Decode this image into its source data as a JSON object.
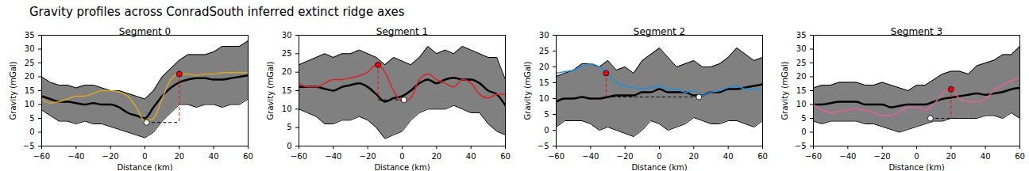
{
  "title": "Gravity profiles across ConradSouth inferred extinct ridge axes",
  "chart_data": [
    {
      "type": "line",
      "title": "Segment 0",
      "x_label": "Distance (km)",
      "y_label": "Gravity (mGal)",
      "xlim": [
        -60,
        60
      ],
      "xticks": [
        -60,
        -40,
        -20,
        0,
        20,
        40,
        60
      ],
      "ylim": [
        -5,
        35
      ],
      "yticks": [
        -5,
        0,
        5,
        10,
        15,
        20,
        25,
        30,
        35
      ],
      "x": [
        -60,
        -55,
        -50,
        -45,
        -40,
        -35,
        -30,
        -25,
        -20,
        -15,
        -10,
        -5,
        0,
        5,
        10,
        15,
        20,
        25,
        30,
        35,
        40,
        45,
        50,
        55,
        60
      ],
      "band": {
        "color": "#808080",
        "lower": [
          8,
          6,
          4,
          4,
          3,
          4,
          3,
          3,
          2,
          1,
          0,
          -1,
          -2,
          0,
          4,
          7,
          10,
          10,
          9,
          10,
          10,
          9,
          10,
          10,
          12
        ],
        "upper": [
          20,
          18,
          17,
          17,
          16,
          17,
          17,
          16,
          15,
          15,
          14,
          13,
          12,
          15,
          20,
          23,
          26,
          28,
          28,
          28,
          29,
          31,
          31,
          31,
          33
        ]
      },
      "series": [
        {
          "color": "#000000",
          "values": [
            13,
            12,
            11,
            11,
            10.5,
            10,
            10.5,
            10,
            10,
            9,
            7,
            6,
            5,
            9,
            13,
            16,
            18,
            19,
            19.5,
            19.5,
            19,
            19,
            19.5,
            20,
            20.5
          ]
        },
        {
          "color": "#daa520",
          "values": [
            12,
            10.5,
            11,
            12,
            13,
            13,
            14,
            15,
            15,
            14.5,
            13,
            9,
            4,
            5,
            12,
            19,
            21,
            21,
            20.5,
            21,
            21,
            21.5,
            21.5,
            21.5,
            21.5
          ]
        }
      ],
      "markers": [
        {
          "x": 20,
          "y": 21,
          "color": "#ff0000"
        },
        {
          "x": 1,
          "y": 3.5,
          "color": "#ffffff"
        }
      ],
      "line_style": "dashed"
    },
    {
      "type": "line",
      "title": "Segment 1",
      "x_label": "Distance (km)",
      "y_label": "Gravity (mGal)",
      "xlim": [
        -60,
        60
      ],
      "xticks": [
        -60,
        -40,
        -20,
        0,
        20,
        40,
        60
      ],
      "ylim": [
        0,
        30
      ],
      "yticks": [
        0,
        5,
        10,
        15,
        20,
        25,
        30
      ],
      "x": [
        -60,
        -55,
        -50,
        -45,
        -40,
        -35,
        -30,
        -25,
        -20,
        -15,
        -10,
        -5,
        0,
        5,
        10,
        15,
        20,
        25,
        30,
        35,
        40,
        45,
        50,
        55,
        60
      ],
      "band": {
        "color": "#808080",
        "lower": [
          10,
          9,
          8,
          6,
          6,
          7,
          7,
          8,
          7,
          5,
          2,
          3,
          4,
          7,
          9,
          10,
          10,
          10,
          11,
          10,
          9,
          9,
          6,
          4,
          3
        ],
        "upper": [
          22,
          23,
          24,
          25,
          24,
          25,
          25,
          26,
          25,
          24,
          22,
          24,
          23,
          22,
          24,
          27,
          25,
          26,
          25,
          27,
          26,
          25,
          24,
          24,
          18
        ]
      },
      "series": [
        {
          "color": "#000000",
          "values": [
            16,
            16,
            16,
            15.5,
            15,
            16,
            16.5,
            17,
            16,
            14,
            12,
            13,
            13.5,
            15,
            17,
            18,
            17,
            18,
            18.5,
            18,
            18,
            17,
            15,
            14,
            11
          ]
        },
        {
          "color": "#dd2222",
          "values": [
            17,
            16,
            16,
            17,
            18,
            18,
            18.5,
            19,
            20,
            22,
            20,
            15,
            12,
            13,
            18,
            19.5,
            18,
            17,
            16,
            18,
            17,
            14,
            13,
            14,
            14
          ]
        }
      ],
      "markers": [
        {
          "x": -14,
          "y": 22,
          "color": "#ff0000"
        },
        {
          "x": 1,
          "y": 12.5,
          "color": "#ffffff"
        }
      ],
      "line_style": "dashed"
    },
    {
      "type": "line",
      "title": "Segment 2",
      "x_label": "Distance (km)",
      "y_label": "Gravity (mGal)",
      "xlim": [
        -60,
        60
      ],
      "xticks": [
        -60,
        -40,
        -20,
        0,
        20,
        40,
        60
      ],
      "ylim": [
        -5,
        30
      ],
      "yticks": [
        -5,
        0,
        5,
        10,
        15,
        20,
        25,
        30
      ],
      "x": [
        -60,
        -55,
        -50,
        -45,
        -40,
        -35,
        -30,
        -25,
        -20,
        -15,
        -10,
        -5,
        0,
        5,
        10,
        15,
        20,
        25,
        30,
        35,
        40,
        45,
        50,
        55,
        60
      ],
      "band": {
        "color": "#808080",
        "lower": [
          1,
          3,
          3,
          3,
          2,
          0,
          1,
          0,
          -1,
          -2,
          0,
          3,
          2,
          0,
          1,
          2,
          4,
          3,
          2,
          2,
          3,
          3,
          2,
          1,
          3
        ],
        "upper": [
          17,
          18,
          19,
          21,
          21,
          20,
          22,
          19,
          20,
          18,
          22,
          24,
          26,
          23,
          20,
          21,
          22,
          20,
          20,
          21,
          23,
          26,
          24,
          22,
          23
        ]
      },
      "series": [
        {
          "color": "#000000",
          "values": [
            9,
            10,
            10,
            10.5,
            10,
            10,
            10.5,
            11,
            11,
            11,
            12,
            12,
            13,
            12,
            12,
            12,
            11,
            11,
            12,
            12,
            13,
            13,
            13.5,
            14,
            14.5
          ]
        },
        {
          "color": "#1f8fe0",
          "values": [
            18,
            18.5,
            19,
            20,
            21,
            20,
            18,
            15,
            14,
            13.5,
            13,
            13.5,
            14,
            13,
            13,
            12,
            12.5,
            11,
            12,
            12.5,
            13.5,
            14,
            13,
            13,
            12.5
          ]
        }
      ],
      "markers": [
        {
          "x": -31,
          "y": 18,
          "color": "#ff0000"
        },
        {
          "x": 23,
          "y": 10.5,
          "color": "#ffffff"
        }
      ],
      "line_style": "dashed"
    },
    {
      "type": "line",
      "title": "Segment 3",
      "x_label": "Distance (km)",
      "y_label": "Gravity (mGal)",
      "xlim": [
        -60,
        60
      ],
      "xticks": [
        -60,
        -40,
        -20,
        0,
        20,
        40,
        60
      ],
      "ylim": [
        -5,
        35
      ],
      "yticks": [
        -5,
        0,
        5,
        10,
        15,
        20,
        25,
        30,
        35
      ],
      "x": [
        -60,
        -55,
        -50,
        -45,
        -40,
        -35,
        -30,
        -25,
        -20,
        -15,
        -10,
        -5,
        0,
        5,
        10,
        15,
        20,
        25,
        30,
        35,
        40,
        45,
        50,
        55,
        60
      ],
      "band": {
        "color": "#808080",
        "lower": [
          4,
          3,
          4,
          4,
          4,
          4,
          3,
          3,
          2,
          1,
          0,
          1,
          2,
          3,
          4,
          4,
          5,
          5,
          5,
          5,
          6,
          6,
          5,
          7,
          5
        ],
        "upper": [
          16,
          17,
          17,
          18,
          18,
          18,
          17,
          17,
          18,
          17,
          16,
          15,
          17,
          17,
          19,
          21,
          22,
          22,
          21,
          24,
          25,
          26,
          28,
          28,
          31
        ]
      },
      "series": [
        {
          "color": "#000000",
          "values": [
            10,
            10,
            10.5,
            11,
            11,
            11,
            10,
            10,
            10,
            9,
            9.5,
            10,
            10,
            10,
            11,
            12,
            12.5,
            13,
            13.5,
            14,
            13.5,
            14,
            14.5,
            15.5,
            16
          ]
        },
        {
          "color": "#e0609a",
          "values": [
            10,
            8,
            7,
            7.5,
            8,
            8.5,
            8,
            7,
            6,
            6,
            7.5,
            9,
            9,
            8,
            10,
            14,
            15.5,
            12,
            11,
            11,
            12,
            15,
            17,
            18.5,
            19.5
          ]
        }
      ],
      "markers": [
        {
          "x": 20,
          "y": 15.5,
          "color": "#ff0000"
        },
        {
          "x": 8,
          "y": 5,
          "color": "#ffffff"
        }
      ],
      "line_style": "dashed"
    }
  ]
}
